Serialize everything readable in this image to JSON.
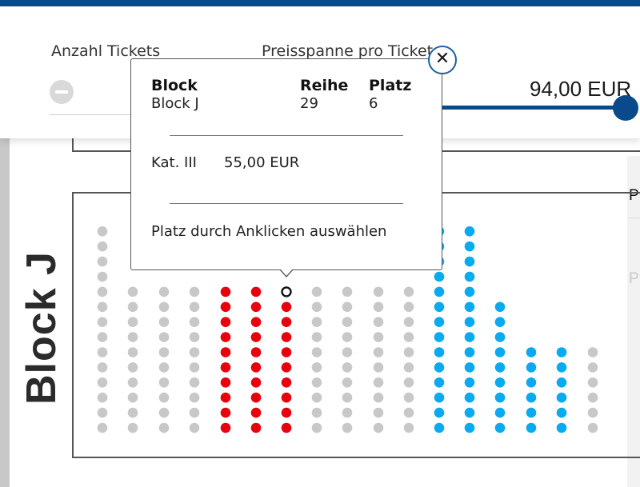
{
  "filters": {
    "tickets_title": "Anzahl Tickets",
    "price_title": "Preisspanne pro Ticket",
    "price_max": "94,00 EUR"
  },
  "popup": {
    "close_icon": "close-icon",
    "block_header": "Block",
    "block_value": "Block J",
    "row_header": "Reihe",
    "row_value": "29",
    "seat_header": "Platz",
    "seat_value": "6",
    "category": "Kat. III",
    "price": "55,00 EUR",
    "hint": "Platz durch Anklicken auswählen"
  },
  "block": {
    "name": "Block J"
  },
  "seat_legend_colors": {
    "unavailable": "#c8c8c8",
    "category_red": "#e8000e",
    "category_blue": "#0aaaf0",
    "selected_outline": "#111111",
    "accent": "#0a4a8a"
  },
  "side_panel": {
    "label_top": "P",
    "label_bottom": "P"
  }
}
